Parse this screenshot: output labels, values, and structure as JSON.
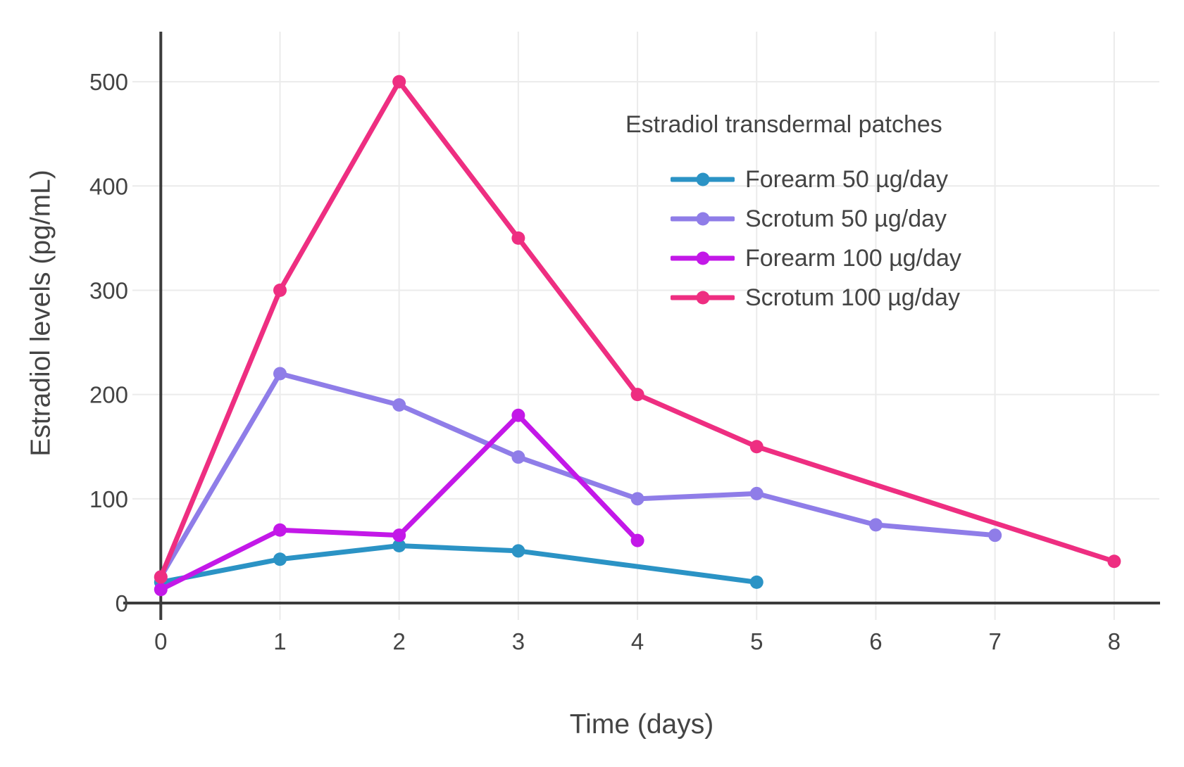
{
  "chart_data": {
    "type": "line",
    "mode": "lines+markers",
    "title": "",
    "xlabel": "Time (days)",
    "ylabel": "Estradiol levels (pg/mL)",
    "legend_title": "Estradiol transdermal patches",
    "legend_position": "top-right-inside",
    "grid": true,
    "background": "#ffffff",
    "grid_color": "#ebebeb",
    "axis_line_color": "#3c3c3c",
    "text_color": "#444444",
    "x_ticks": [
      0,
      1,
      2,
      3,
      4,
      5,
      6,
      7,
      8
    ],
    "y_ticks": [
      0,
      100,
      200,
      300,
      400,
      500
    ],
    "xlim": [
      -0.315,
      8.385
    ],
    "ylim": [
      0,
      548
    ],
    "series": [
      {
        "name": "Forearm 50 µg/day",
        "color": "#2B93C5",
        "x": [
          0,
          1,
          2,
          3,
          5
        ],
        "values": [
          20,
          42,
          55,
          50,
          20
        ]
      },
      {
        "name": "Scrotum 50 µg/day",
        "color": "#8F7DE8",
        "x": [
          0,
          1,
          2,
          3,
          4,
          5,
          6,
          7
        ],
        "values": [
          25,
          220,
          190,
          140,
          100,
          105,
          75,
          65
        ]
      },
      {
        "name": "Forearm 100 µg/day",
        "color": "#C318E8",
        "x": [
          0,
          1,
          2,
          3,
          4
        ],
        "values": [
          13,
          70,
          65,
          180,
          60
        ]
      },
      {
        "name": "Scrotum 100 µg/day",
        "color": "#EE2E81",
        "x": [
          0,
          1,
          2,
          3,
          4,
          5,
          8
        ],
        "values": [
          25,
          300,
          500,
          350,
          200,
          150,
          40
        ]
      }
    ]
  }
}
